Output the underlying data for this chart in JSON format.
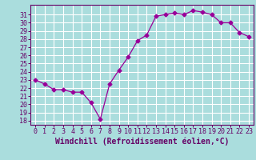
{
  "x": [
    0,
    1,
    2,
    3,
    4,
    5,
    6,
    7,
    8,
    9,
    10,
    11,
    12,
    13,
    14,
    15,
    16,
    17,
    18,
    19,
    20,
    21,
    22,
    23
  ],
  "y": [
    23.0,
    22.5,
    21.8,
    21.8,
    21.5,
    21.5,
    20.2,
    18.2,
    22.5,
    24.2,
    25.8,
    27.8,
    28.5,
    30.8,
    31.0,
    31.2,
    31.0,
    31.5,
    31.3,
    31.0,
    30.0,
    30.0,
    28.8,
    28.3
  ],
  "line_color": "#990099",
  "marker": "D",
  "markersize": 2.5,
  "linewidth": 0.9,
  "bg_color": "#aadddd",
  "plot_bg_color": "#aadddd",
  "grid_color": "#ffffff",
  "xlabel": "Windchill (Refroidissement éolien,°C)",
  "ylabel": "",
  "title": "",
  "xlim": [
    -0.5,
    23.5
  ],
  "ylim": [
    17.5,
    32.2
  ],
  "yticks": [
    18,
    19,
    20,
    21,
    22,
    23,
    24,
    25,
    26,
    27,
    28,
    29,
    30,
    31
  ],
  "xticks": [
    0,
    1,
    2,
    3,
    4,
    5,
    6,
    7,
    8,
    9,
    10,
    11,
    12,
    13,
    14,
    15,
    16,
    17,
    18,
    19,
    20,
    21,
    22,
    23
  ],
  "tick_color": "#660066",
  "axis_color": "#660066",
  "label_color": "#660066",
  "xlabel_fontsize": 7,
  "tick_fontsize": 6
}
